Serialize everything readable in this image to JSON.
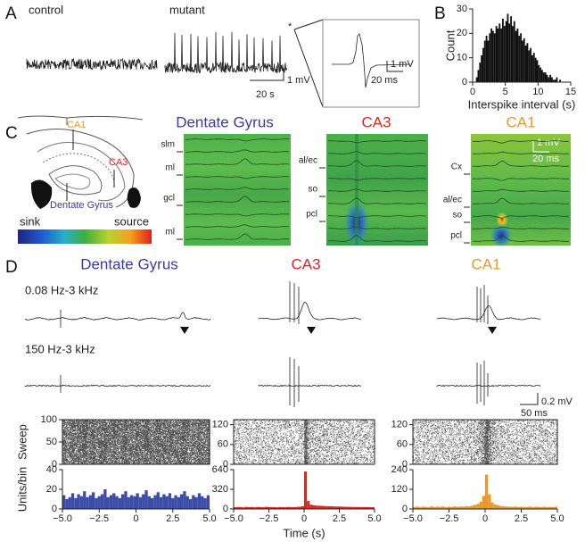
{
  "panels": {
    "A": {
      "label": "A",
      "control": "control",
      "mutant": "mutant",
      "scale_time": "20 s",
      "scale_voltage": "1 mV",
      "inset_voltage": "1 mV",
      "inset_time": "20 ms"
    },
    "B": {
      "label": "B"
    },
    "C": {
      "label": "C",
      "schematic": {
        "ca1": "CA1",
        "ca3": "CA3",
        "dg": "Dentate Gyrus"
      },
      "colorbar": {
        "sink": "sink",
        "source": "source"
      },
      "columns": [
        {
          "title": "Dentate Gyrus",
          "layers": [
            "slm",
            "ml",
            "gcl",
            "ml"
          ]
        },
        {
          "title": "CA3",
          "layers": [
            "al/ec",
            "so",
            "pcl"
          ]
        },
        {
          "title": "CA1",
          "layers": [
            "Cx",
            "al/ec",
            "so",
            "pcl"
          ]
        }
      ],
      "scale_voltage": "1 mV",
      "scale_time": "20 ms"
    },
    "D": {
      "label": "D",
      "titles": [
        "Dentate Gyrus",
        "CA3",
        "CA1"
      ],
      "band_wide": "0.08 Hz-3 kHz",
      "band_high": "150 Hz-3 kHz",
      "scale_voltage": "0.2 mV",
      "scale_time": "50 ms"
    }
  },
  "chart_data": [
    {
      "type": "histogram",
      "ylabel": "Count",
      "xlabel": "Interspike interval (s)",
      "color": "#111111",
      "bins": [
        0.5,
        0.75,
        1,
        1.25,
        1.5,
        1.75,
        2,
        2.25,
        2.5,
        2.75,
        3,
        3.25,
        3.5,
        3.75,
        4,
        4.25,
        4.5,
        4.75,
        5,
        5.25,
        5.5,
        5.75,
        6,
        6.25,
        6.5,
        6.75,
        7,
        7.25,
        7.5,
        7.75,
        8,
        8.25,
        8.5,
        8.75,
        9,
        9.25,
        9.5,
        9.75,
        10,
        10.25,
        10.5,
        10.75,
        11,
        11.25,
        11.5,
        11.75,
        12,
        12.25,
        12.5,
        12.75,
        13,
        13.25,
        13.5
      ],
      "values": [
        2,
        5,
        8,
        11,
        14,
        17,
        19,
        17,
        20,
        22,
        21,
        20,
        23,
        22,
        24,
        22,
        26,
        23,
        25,
        28,
        24,
        27,
        23,
        25,
        21,
        22,
        19,
        20,
        17,
        18,
        15,
        16,
        13,
        14,
        11,
        12,
        10,
        9,
        7,
        6,
        5,
        4,
        4,
        3,
        2,
        3,
        2,
        1,
        1,
        2,
        0,
        1
      ],
      "xlim": [
        0,
        15
      ],
      "xticks": [
        0,
        5,
        10,
        15
      ],
      "ylim": [
        0,
        30
      ],
      "yticks": [
        0,
        10,
        20,
        30
      ]
    },
    {
      "type": "raster",
      "ylabel": "Sweep",
      "ylim": [
        0,
        100
      ],
      "yticks": [
        0,
        50,
        100
      ],
      "xlim": [
        -5,
        5
      ]
    },
    {
      "type": "raster",
      "ylim": [
        0,
        135
      ],
      "yticks": [
        0,
        60,
        120
      ],
      "xlim": [
        -5,
        5
      ]
    },
    {
      "type": "raster",
      "ylim": [
        0,
        135
      ],
      "yticks": [
        0,
        60,
        120
      ],
      "xlim": [
        -5,
        5
      ]
    },
    {
      "type": "histogram",
      "ylabel": "Units/bin",
      "color": "#3b4ba8",
      "bins": [
        -5,
        -4.8,
        -4.6,
        -4.4,
        -4.2,
        -4,
        -3.8,
        -3.6,
        -3.4,
        -3.2,
        -3,
        -2.8,
        -2.6,
        -2.4,
        -2.2,
        -2,
        -1.8,
        -1.6,
        -1.4,
        -1.2,
        -1,
        -0.8,
        -0.6,
        -0.4,
        -0.2,
        0,
        0.2,
        0.4,
        0.6,
        0.8,
        1,
        1.2,
        1.4,
        1.6,
        1.8,
        2,
        2.2,
        2.4,
        2.6,
        2.8,
        3,
        3.2,
        3.4,
        3.6,
        3.8,
        4,
        4.2,
        4.4,
        4.6,
        4.8,
        5
      ],
      "values": [
        14,
        10,
        12,
        16,
        11,
        15,
        13,
        18,
        12,
        14,
        17,
        11,
        13,
        15,
        20,
        12,
        14,
        16,
        13,
        11,
        15,
        18,
        12,
        14,
        13,
        16,
        12,
        15,
        19,
        13,
        11,
        14,
        17,
        12,
        15,
        13,
        16,
        11,
        14,
        12,
        15,
        18,
        13,
        10,
        14,
        12,
        16,
        13,
        11,
        14
      ],
      "xlim": [
        -5,
        5
      ],
      "xticks": [
        {
          "value": -5,
          "label": "−5.0"
        },
        {
          "value": -2.5,
          "label": "−2.5"
        },
        0,
        2.5,
        {
          "value": 5,
          "label": "5.0"
        }
      ],
      "ylim": [
        0,
        40
      ],
      "yticks": [
        0,
        20,
        40
      ]
    },
    {
      "type": "histogram",
      "xlabel": "Time (s)",
      "color": "#d8281e",
      "bins": [
        -5,
        -4.8,
        -4.6,
        -4.4,
        -4.2,
        -4,
        -3.8,
        -3.6,
        -3.4,
        -3.2,
        -3,
        -2.8,
        -2.6,
        -2.4,
        -2.2,
        -2,
        -1.8,
        -1.6,
        -1.4,
        -1.2,
        -1,
        -0.8,
        -0.6,
        -0.4,
        -0.2,
        0,
        0.2,
        0.4,
        0.6,
        0.8,
        1,
        1.2,
        1.4,
        1.6,
        1.8,
        2,
        2.2,
        2.4,
        2.6,
        2.8,
        3,
        3.2,
        3.4,
        3.6,
        3.8,
        4,
        4.2,
        4.4,
        4.6,
        4.8,
        5
      ],
      "values": [
        28,
        32,
        30,
        26,
        34,
        29,
        31,
        27,
        33,
        30,
        28,
        35,
        29,
        31,
        30,
        26,
        32,
        30,
        28,
        33,
        31,
        29,
        34,
        36,
        45,
        610,
        130,
        70,
        60,
        55,
        52,
        50,
        48,
        45,
        44,
        42,
        40,
        40,
        38,
        36,
        35,
        34,
        33,
        32,
        32,
        31,
        30,
        30,
        29,
        28
      ],
      "xlim": [
        -5,
        5
      ],
      "xticks": [
        {
          "value": -5,
          "label": "−5.0"
        },
        {
          "value": -2.5,
          "label": "−2.5"
        },
        0,
        2.5,
        {
          "value": 5,
          "label": "5.0"
        }
      ],
      "ylim": [
        0,
        640
      ],
      "yticks": [
        0,
        320,
        640
      ]
    },
    {
      "type": "histogram",
      "color": "#e8992a",
      "bins": [
        -5,
        -4.8,
        -4.6,
        -4.4,
        -4.2,
        -4,
        -3.8,
        -3.6,
        -3.4,
        -3.2,
        -3,
        -2.8,
        -2.6,
        -2.4,
        -2.2,
        -2,
        -1.8,
        -1.6,
        -1.4,
        -1.2,
        -1,
        -0.8,
        -0.6,
        -0.4,
        -0.2,
        0,
        0.2,
        0.4,
        0.6,
        0.8,
        1,
        1.2,
        1.4,
        1.6,
        1.8,
        2,
        2.2,
        2.4,
        2.6,
        2.8,
        3,
        3.2,
        3.4,
        3.6,
        3.8,
        4,
        4.2,
        4.4,
        4.6,
        4.8,
        5
      ],
      "values": [
        12,
        15,
        10,
        14,
        13,
        11,
        16,
        12,
        14,
        13,
        15,
        11,
        14,
        12,
        16,
        13,
        15,
        14,
        17,
        16,
        20,
        25,
        30,
        45,
        80,
        210,
        90,
        40,
        28,
        22,
        18,
        16,
        15,
        14,
        13,
        15,
        12,
        14,
        13,
        12,
        15,
        11,
        14,
        13,
        12,
        14,
        11,
        13,
        12,
        14
      ],
      "xlim": [
        -5,
        5
      ],
      "xticks": [
        {
          "value": -5,
          "label": "−5.0"
        },
        {
          "value": -2.5,
          "label": "−2.5"
        },
        0,
        2.5,
        {
          "value": 5,
          "label": "5.0"
        }
      ],
      "ylim": [
        0,
        240
      ],
      "yticks": [
        0,
        120,
        240
      ]
    }
  ]
}
